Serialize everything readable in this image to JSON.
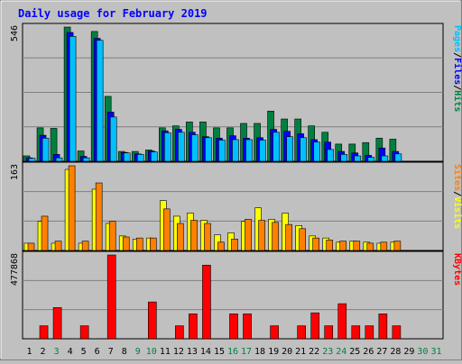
{
  "chart_data": [
    {
      "type": "bar",
      "title": "Daily usage for February 2019",
      "ylabel_parts": [
        {
          "text": "Pages",
          "color": "#00c0ff"
        },
        {
          "text": "/",
          "color": "#000000"
        },
        {
          "text": "Files",
          "color": "#0000ff"
        },
        {
          "text": "/",
          "color": "#000000"
        },
        {
          "text": "Hits",
          "color": "#008040"
        }
      ],
      "ymax_label": "546",
      "ylim": [
        0,
        546
      ],
      "categories": [
        "1",
        "2",
        "3",
        "4",
        "5",
        "6",
        "7",
        "8",
        "9",
        "10",
        "11",
        "12",
        "13",
        "14",
        "15",
        "16",
        "17",
        "18",
        "19",
        "20",
        "21",
        "22",
        "23",
        "24",
        "25",
        "26",
        "27",
        "28",
        "29",
        "30",
        "31"
      ],
      "series": [
        {
          "name": "Hits",
          "color": "#008040",
          "values": [
            22,
            136,
            134,
            546,
            42,
            528,
            264,
            40,
            40,
            46,
            136,
            144,
            160,
            160,
            136,
            136,
            154,
            154,
            204,
            172,
            172,
            144,
            118,
            70,
            70,
            76,
            94,
            90,
            0,
            0,
            0
          ]
        },
        {
          "name": "Files",
          "color": "#0000ff",
          "values": [
            14,
            106,
            28,
            524,
            20,
            500,
            200,
            36,
            30,
            42,
            124,
            130,
            118,
            100,
            94,
            104,
            94,
            96,
            130,
            122,
            112,
            88,
            78,
            40,
            34,
            24,
            54,
            40,
            0,
            0,
            0
          ]
        },
        {
          "name": "Pages",
          "color": "#00c0ff",
          "values": [
            12,
            94,
            14,
            508,
            14,
            492,
            180,
            34,
            28,
            38,
            116,
            118,
            108,
            96,
            86,
            88,
            88,
            86,
            118,
            100,
            96,
            78,
            48,
            28,
            22,
            16,
            22,
            30,
            0,
            0,
            0
          ]
        }
      ]
    },
    {
      "type": "bar",
      "ylabel_parts": [
        {
          "text": "Sites",
          "color": "#ff8000"
        },
        {
          "text": "/",
          "color": "#000000"
        },
        {
          "text": "Visits",
          "color": "#ffff00"
        }
      ],
      "ymax_label": "163",
      "ylim": [
        0,
        163
      ],
      "categories": [
        "1",
        "2",
        "3",
        "4",
        "5",
        "6",
        "7",
        "8",
        "9",
        "10",
        "11",
        "12",
        "13",
        "14",
        "15",
        "16",
        "17",
        "18",
        "19",
        "20",
        "21",
        "22",
        "23",
        "24",
        "25",
        "26",
        "27",
        "28",
        "29",
        "30",
        "31"
      ],
      "series": [
        {
          "name": "Visits",
          "color": "#ffff00",
          "values": [
            14,
            56,
            14,
            156,
            14,
            118,
            52,
            28,
            22,
            24,
            96,
            66,
            72,
            58,
            30,
            34,
            56,
            82,
            60,
            72,
            48,
            28,
            24,
            16,
            18,
            16,
            14,
            16,
            0,
            0,
            0
          ]
        },
        {
          "name": "Sites",
          "color": "#ff8000",
          "values": [
            14,
            66,
            18,
            163,
            18,
            130,
            56,
            26,
            24,
            24,
            80,
            52,
            58,
            52,
            16,
            22,
            60,
            58,
            54,
            50,
            42,
            24,
            20,
            18,
            18,
            14,
            16,
            18,
            0,
            0,
            0
          ]
        }
      ]
    },
    {
      "type": "bar",
      "ylabel_parts": [
        {
          "text": "KBytes",
          "color": "#ff0000"
        }
      ],
      "ymax_label": "477868",
      "ylim": [
        0,
        477868
      ],
      "categories": [
        "1",
        "2",
        "3",
        "4",
        "5",
        "6",
        "7",
        "8",
        "9",
        "10",
        "11",
        "12",
        "13",
        "14",
        "15",
        "16",
        "17",
        "18",
        "19",
        "20",
        "21",
        "22",
        "23",
        "24",
        "25",
        "26",
        "27",
        "28",
        "29",
        "30",
        "31"
      ],
      "series": [
        {
          "name": "KBytes",
          "color": "#ff0000",
          "values": [
            0,
            74000,
            178000,
            0,
            74000,
            0,
            477868,
            0,
            0,
            210000,
            0,
            74000,
            142000,
            420000,
            0,
            142000,
            142000,
            0,
            74000,
            0,
            74000,
            148000,
            74000,
            200000,
            74000,
            74000,
            142000,
            74000,
            0,
            0,
            0
          ]
        }
      ]
    }
  ],
  "day_colors": [
    "#000000",
    "#000000",
    "#008040",
    "#000000",
    "#000000",
    "#000000",
    "#000000",
    "#000000",
    "#008040",
    "#008040",
    "#000000",
    "#000000",
    "#000000",
    "#000000",
    "#000000",
    "#008040",
    "#008040",
    "#000000",
    "#000000",
    "#000000",
    "#000000",
    "#000000",
    "#008040",
    "#008040",
    "#000000",
    "#000000",
    "#000000",
    "#000000",
    "#000000",
    "#008040",
    "#008040"
  ]
}
